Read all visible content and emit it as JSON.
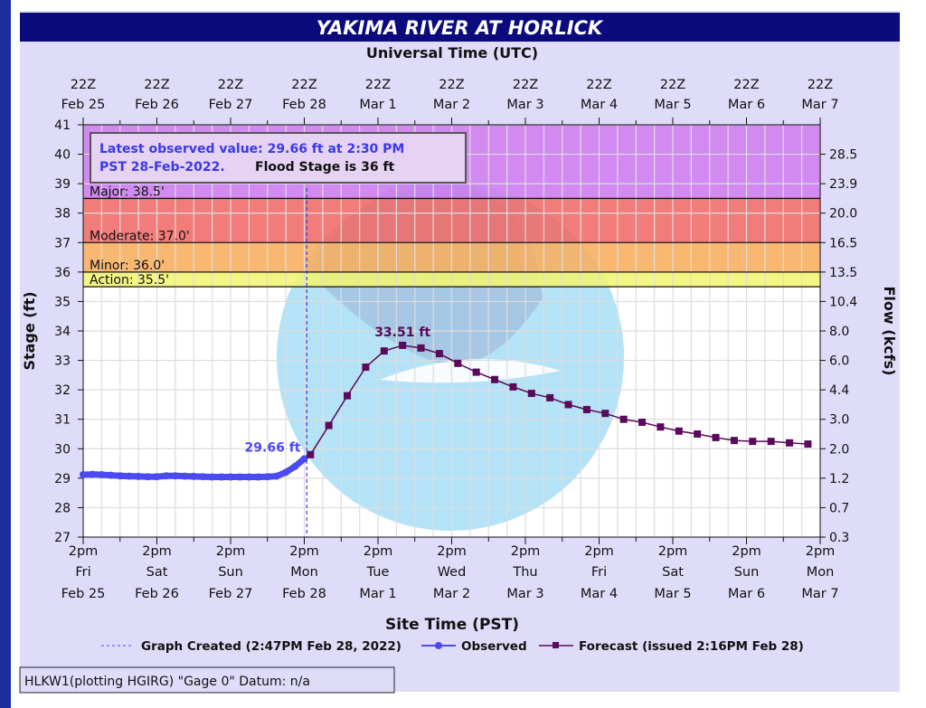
{
  "title": "YAKIMA RIVER AT HORLICK",
  "top_axis_title": "Universal Time (UTC)",
  "bottom_axis_title": "Site Time (PST)",
  "footer": "HLKW1(plotting HGIRG) \"Gage 0\" Datum: n/a",
  "info_box": {
    "observed_text_line1": "Latest observed value: 29.66 ft at 2:30 PM",
    "observed_text_line2": "PST 28-Feb-2022.",
    "flood_stage_text": "Flood Stage is 36 ft"
  },
  "legend": {
    "graph_created": "Graph Created (2:47PM Feb 28, 2022)",
    "observed": "Observed",
    "forecast": "Forecast (issued 2:16PM Feb 28)"
  },
  "colors": {
    "title_bg": "#0b0b7e",
    "panel_bg": "#dedcf8",
    "observed": "#4a4af0",
    "forecast": "#5a0a5a",
    "major": "#cc7aee",
    "moderate": "#f06a66",
    "minor": "#f8ae5e",
    "action": "#f4f472"
  },
  "chart_data": {
    "type": "line",
    "title": "YAKIMA RIVER AT HORLICK",
    "xlabel": "Site Time (PST)",
    "x2label": "Universal Time (UTC)",
    "ylabel": "Stage (ft)",
    "y2label": "Flow (kcfs)",
    "x_units": "hours since 2pm Fri Feb 25 PST",
    "xlim": [
      0,
      240
    ],
    "ylim": [
      27,
      41
    ],
    "grid": true,
    "bottom_ticks": [
      {
        "time": "2pm",
        "day": "Fri",
        "date": "Feb 25"
      },
      {
        "time": "2pm",
        "day": "Sat",
        "date": "Feb 26"
      },
      {
        "time": "2pm",
        "day": "Sun",
        "date": "Feb 27"
      },
      {
        "time": "2pm",
        "day": "Mon",
        "date": "Feb 28"
      },
      {
        "time": "2pm",
        "day": "Tue",
        "date": "Mar 1"
      },
      {
        "time": "2pm",
        "day": "Wed",
        "date": "Mar 2"
      },
      {
        "time": "2pm",
        "day": "Thu",
        "date": "Mar 3"
      },
      {
        "time": "2pm",
        "day": "Fri",
        "date": "Mar 4"
      },
      {
        "time": "2pm",
        "day": "Sat",
        "date": "Mar 5"
      },
      {
        "time": "2pm",
        "day": "Sun",
        "date": "Mar 6"
      },
      {
        "time": "2pm",
        "day": "Mon",
        "date": "Mar 7"
      }
    ],
    "top_ticks": [
      {
        "time": "22Z",
        "date": "Feb 25"
      },
      {
        "time": "22Z",
        "date": "Feb 26"
      },
      {
        "time": "22Z",
        "date": "Feb 27"
      },
      {
        "time": "22Z",
        "date": "Feb 28"
      },
      {
        "time": "22Z",
        "date": "Mar  1"
      },
      {
        "time": "22Z",
        "date": "Mar  2"
      },
      {
        "time": "22Z",
        "date": "Mar  3"
      },
      {
        "time": "22Z",
        "date": "Mar  4"
      },
      {
        "time": "22Z",
        "date": "Mar  5"
      },
      {
        "time": "22Z",
        "date": "Mar  6"
      },
      {
        "time": "22Z",
        "date": "Mar  7"
      }
    ],
    "y_ticks": [
      27,
      28,
      29,
      30,
      31,
      32,
      33,
      34,
      35,
      36,
      37,
      38,
      39,
      40,
      41
    ],
    "flow_ticks": [
      {
        "stage": 27,
        "label": "0.3"
      },
      {
        "stage": 28,
        "label": "0.7"
      },
      {
        "stage": 29,
        "label": "1.2"
      },
      {
        "stage": 30,
        "label": "2.0"
      },
      {
        "stage": 31,
        "label": "3.0"
      },
      {
        "stage": 32,
        "label": "4.4"
      },
      {
        "stage": 33,
        "label": "6.0"
      },
      {
        "stage": 34,
        "label": "8.0"
      },
      {
        "stage": 35,
        "label": "10.4"
      },
      {
        "stage": 36,
        "label": "13.5"
      },
      {
        "stage": 37,
        "label": "16.5"
      },
      {
        "stage": 38,
        "label": "20.0"
      },
      {
        "stage": 39,
        "label": "23.9"
      },
      {
        "stage": 40,
        "label": "28.5"
      }
    ],
    "flood_categories": [
      {
        "name": "major",
        "label": "Major: 38.5'",
        "from": 38.5,
        "to": 41
      },
      {
        "name": "moderate",
        "label": "Moderate: 37.0'",
        "from": 37.0,
        "to": 38.5
      },
      {
        "name": "minor",
        "label": "Minor: 36.0'",
        "from": 36.0,
        "to": 37.0
      },
      {
        "name": "action",
        "label": "Action: 35.5'",
        "from": 35.5,
        "to": 36.0
      }
    ],
    "graph_created_x": 72.8,
    "series": [
      {
        "name": "Observed",
        "x_start": 0,
        "x_step": 3,
        "values": [
          29.12,
          29.13,
          29.12,
          29.1,
          29.08,
          29.07,
          29.06,
          29.05,
          29.05,
          29.08,
          29.08,
          29.07,
          29.06,
          29.05,
          29.04,
          29.04,
          29.04,
          29.04,
          29.04,
          29.04,
          29.05,
          29.07,
          29.2,
          29.4,
          29.66
        ],
        "label": "29.66 ft"
      },
      {
        "name": "Forecast",
        "x_start": 74,
        "x_step": 6,
        "values": [
          29.8,
          30.79,
          31.8,
          32.77,
          33.32,
          33.51,
          33.42,
          33.23,
          32.9,
          32.6,
          32.35,
          32.1,
          31.88,
          31.73,
          31.5,
          31.33,
          31.2,
          31.0,
          30.9,
          30.74,
          30.6,
          30.5,
          30.38,
          30.28,
          30.25,
          30.25,
          30.2,
          30.16
        ],
        "label": "33.51 ft"
      }
    ]
  }
}
